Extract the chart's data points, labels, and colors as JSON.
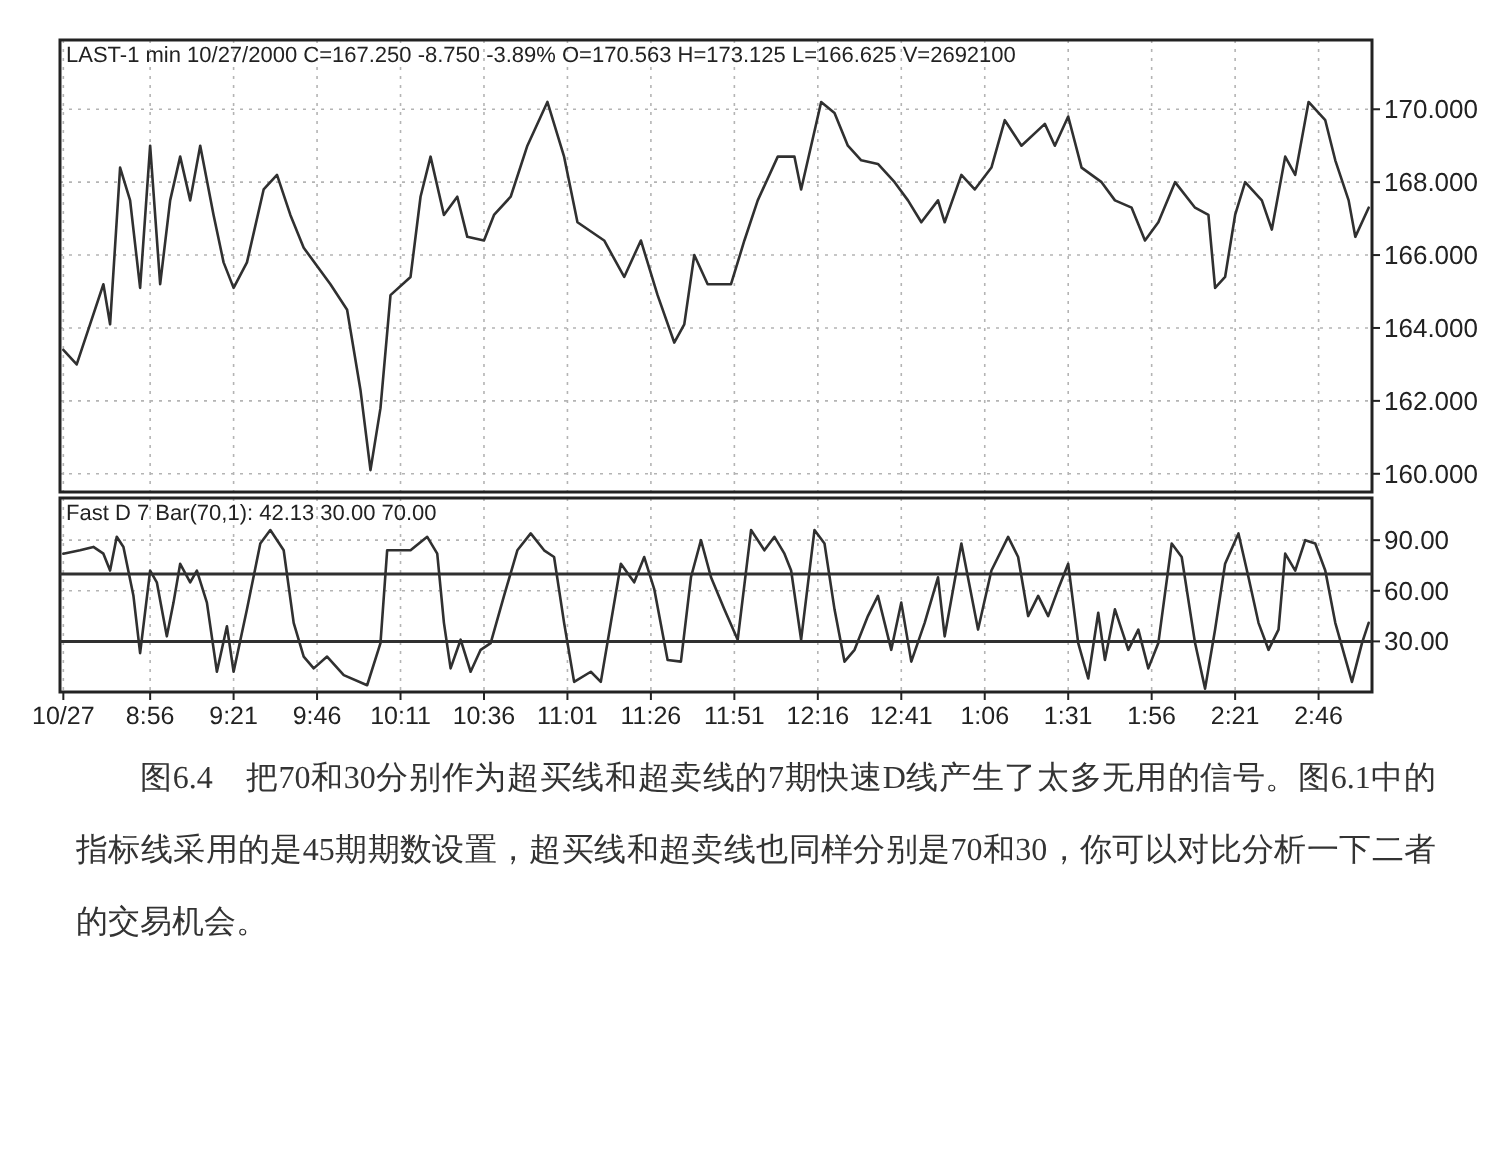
{
  "chart_data": [
    {
      "type": "line",
      "title": "LAST-1 min  10/27/2000  C=167.250  -8.750  -3.89%  O=170.563  H=173.125  L=166.625  V=2692100",
      "color": "#303030",
      "grid": true,
      "tick_labels": "y",
      "x": [
        "2000-10-27T08:30",
        "2000-10-27T08:34",
        "2000-10-27T08:38",
        "2000-10-27T08:42",
        "2000-10-27T08:44",
        "2000-10-27T08:47",
        "2000-10-27T08:50",
        "2000-10-27T08:53",
        "2000-10-27T08:56",
        "2000-10-27T08:59",
        "2000-10-27T09:02",
        "2000-10-27T09:05",
        "2000-10-27T09:08",
        "2000-10-27T09:11",
        "2000-10-27T09:15",
        "2000-10-27T09:18",
        "2000-10-27T09:21",
        "2000-10-27T09:25",
        "2000-10-27T09:30",
        "2000-10-27T09:34",
        "2000-10-27T09:38",
        "2000-10-27T09:42",
        "2000-10-27T09:50",
        "2000-10-27T09:55",
        "2000-10-27T09:59",
        "2000-10-27T10:02",
        "2000-10-27T10:05",
        "2000-10-27T10:08",
        "2000-10-27T10:14",
        "2000-10-27T10:17",
        "2000-10-27T10:20",
        "2000-10-27T10:24",
        "2000-10-27T10:28",
        "2000-10-27T10:31",
        "2000-10-27T10:36",
        "2000-10-27T10:39",
        "2000-10-27T10:44",
        "2000-10-27T10:49",
        "2000-10-27T10:55",
        "2000-10-27T11:00",
        "2000-10-27T11:04",
        "2000-10-27T11:12",
        "2000-10-27T11:18",
        "2000-10-27T11:23",
        "2000-10-27T11:28",
        "2000-10-27T11:33",
        "2000-10-27T11:36",
        "2000-10-27T11:39",
        "2000-10-27T11:43",
        "2000-10-27T11:50",
        "2000-10-27T11:54",
        "2000-10-27T11:58",
        "2000-10-27T12:04",
        "2000-10-27T12:09",
        "2000-10-27T12:11",
        "2000-10-27T12:17",
        "2000-10-27T12:21",
        "2000-10-27T12:25",
        "2000-10-27T12:29",
        "2000-10-27T12:34",
        "2000-10-27T12:39",
        "2000-10-27T12:43",
        "2000-10-27T12:47",
        "2000-10-27T12:52",
        "2000-10-27T12:54",
        "2000-10-27T12:59",
        "2000-10-27T13:03",
        "2000-10-27T13:08",
        "2000-10-27T13:12",
        "2000-10-27T13:17",
        "2000-10-27T13:24",
        "2000-10-27T13:27",
        "2000-10-27T13:31",
        "2000-10-27T13:35",
        "2000-10-27T13:41",
        "2000-10-27T13:45",
        "2000-10-27T13:50",
        "2000-10-27T13:54",
        "2000-10-27T13:58",
        "2000-10-27T14:03",
        "2000-10-27T14:09",
        "2000-10-27T14:13",
        "2000-10-27T14:15",
        "2000-10-27T14:18",
        "2000-10-27T14:21",
        "2000-10-27T14:24",
        "2000-10-27T14:29",
        "2000-10-27T14:32",
        "2000-10-27T14:36",
        "2000-10-27T14:39",
        "2000-10-27T14:43",
        "2000-10-27T14:48",
        "2000-10-27T14:51",
        "2000-10-27T14:55",
        "2000-10-27T14:57",
        "2000-10-27T15:01"
      ],
      "values": [
        163.4,
        163.0,
        164.1,
        165.2,
        164.1,
        168.4,
        167.5,
        165.1,
        169.0,
        165.2,
        167.5,
        168.7,
        167.5,
        169.0,
        167.1,
        165.8,
        165.1,
        165.8,
        167.8,
        168.2,
        167.1,
        166.2,
        165.2,
        164.5,
        162.3,
        160.1,
        161.8,
        164.9,
        165.4,
        167.6,
        168.7,
        167.1,
        167.6,
        166.5,
        166.4,
        167.1,
        167.6,
        169.0,
        170.2,
        168.7,
        166.9,
        166.4,
        165.4,
        166.4,
        164.9,
        163.6,
        164.1,
        166.0,
        165.2,
        165.2,
        166.4,
        167.5,
        168.7,
        168.7,
        167.8,
        170.2,
        169.9,
        169.0,
        168.6,
        168.5,
        168.0,
        167.5,
        166.9,
        167.5,
        166.9,
        168.2,
        167.8,
        168.4,
        169.7,
        169.0,
        169.6,
        169.0,
        169.8,
        168.4,
        168.0,
        167.5,
        167.3,
        166.4,
        166.9,
        168.0,
        167.3,
        167.1,
        165.1,
        165.4,
        167.1,
        168.0,
        167.5,
        166.7,
        168.7,
        168.2,
        170.2,
        169.7,
        168.6,
        167.5,
        166.5,
        167.3
      ],
      "xlim": [
        "2000-10-27T08:29",
        "2000-10-27T15:02"
      ],
      "ylim": [
        159.5,
        171.9
      ],
      "xticks": [
        {
          "value": "2000-10-27T08:30",
          "label": null
        },
        {
          "value": "2000-10-27T08:56",
          "label": null
        },
        {
          "value": "2000-10-27T09:21",
          "label": null
        },
        {
          "value": "2000-10-27T09:46",
          "label": null
        },
        {
          "value": "2000-10-27T10:11",
          "label": null
        },
        {
          "value": "2000-10-27T10:36",
          "label": null
        },
        {
          "value": "2000-10-27T11:01",
          "label": null
        },
        {
          "value": "2000-10-27T11:26",
          "label": null
        },
        {
          "value": "2000-10-27T11:51",
          "label": null
        },
        {
          "value": "2000-10-27T12:16",
          "label": null
        },
        {
          "value": "2000-10-27T12:41",
          "label": null
        },
        {
          "value": "2000-10-27T13:06",
          "label": null
        },
        {
          "value": "2000-10-27T13:31",
          "label": null
        },
        {
          "value": "2000-10-27T13:56",
          "label": null
        },
        {
          "value": "2000-10-27T14:21",
          "label": null
        },
        {
          "value": "2000-10-27T14:46",
          "label": null
        }
      ],
      "yticks": [
        {
          "value": 160,
          "label": "160.000"
        },
        {
          "value": 162,
          "label": "162.000"
        },
        {
          "value": 164,
          "label": "164.000"
        },
        {
          "value": 166,
          "label": "166.000"
        },
        {
          "value": 168,
          "label": "168.000"
        },
        {
          "value": 170,
          "label": "170.000"
        }
      ]
    },
    {
      "type": "line",
      "title": "Fast D 7 Bar(70,1): 42.13  30.00  70.00",
      "color": "#303030",
      "grid": true,
      "x": [
        "2000-10-27T08:30",
        "2000-10-27T08:35",
        "2000-10-27T08:39",
        "2000-10-27T08:42",
        "2000-10-27T08:44",
        "2000-10-27T08:46",
        "2000-10-27T08:48",
        "2000-10-27T08:51",
        "2000-10-27T08:53",
        "2000-10-27T08:56",
        "2000-10-27T08:58",
        "2000-10-27T09:01",
        "2000-10-27T09:03",
        "2000-10-27T09:05",
        "2000-10-27T09:08",
        "2000-10-27T09:10",
        "2000-10-27T09:13",
        "2000-10-27T09:16",
        "2000-10-27T09:19",
        "2000-10-27T09:21",
        "2000-10-27T09:25",
        "2000-10-27T09:29",
        "2000-10-27T09:32",
        "2000-10-27T09:36",
        "2000-10-27T09:39",
        "2000-10-27T09:42",
        "2000-10-27T09:45",
        "2000-10-27T09:49",
        "2000-10-27T09:54",
        "2000-10-27T10:01",
        "2000-10-27T10:05",
        "2000-10-27T10:07",
        "2000-10-27T10:14",
        "2000-10-27T10:19",
        "2000-10-27T10:22",
        "2000-10-27T10:24",
        "2000-10-27T10:26",
        "2000-10-27T10:29",
        "2000-10-27T10:32",
        "2000-10-27T10:35",
        "2000-10-27T10:38",
        "2000-10-27T10:42",
        "2000-10-27T10:46",
        "2000-10-27T10:50",
        "2000-10-27T10:54",
        "2000-10-27T10:57",
        "2000-10-27T11:00",
        "2000-10-27T11:03",
        "2000-10-27T11:08",
        "2000-10-27T11:11",
        "2000-10-27T11:14",
        "2000-10-27T11:17",
        "2000-10-27T11:21",
        "2000-10-27T11:24",
        "2000-10-27T11:27",
        "2000-10-27T11:31",
        "2000-10-27T11:35",
        "2000-10-27T11:38",
        "2000-10-27T11:41",
        "2000-10-27T11:44",
        "2000-10-27T11:48",
        "2000-10-27T11:52",
        "2000-10-27T11:56",
        "2000-10-27T12:00",
        "2000-10-27T12:03",
        "2000-10-27T12:06",
        "2000-10-27T12:08",
        "2000-10-27T12:11",
        "2000-10-27T12:15",
        "2000-10-27T12:18",
        "2000-10-27T12:21",
        "2000-10-27T12:24",
        "2000-10-27T12:27",
        "2000-10-27T12:31",
        "2000-10-27T12:34",
        "2000-10-27T12:36",
        "2000-10-27T12:38",
        "2000-10-27T12:41",
        "2000-10-27T12:44",
        "2000-10-27T12:48",
        "2000-10-27T12:52",
        "2000-10-27T12:54",
        "2000-10-27T12:59",
        "2000-10-27T13:04",
        "2000-10-27T13:08",
        "2000-10-27T13:13",
        "2000-10-27T13:16",
        "2000-10-27T13:19",
        "2000-10-27T13:22",
        "2000-10-27T13:25",
        "2000-10-27T13:28",
        "2000-10-27T13:31",
        "2000-10-27T13:34",
        "2000-10-27T13:37",
        "2000-10-27T13:40",
        "2000-10-27T13:42",
        "2000-10-27T13:45",
        "2000-10-27T13:49",
        "2000-10-27T13:52",
        "2000-10-27T13:55",
        "2000-10-27T13:58",
        "2000-10-27T14:02",
        "2000-10-27T14:05",
        "2000-10-27T14:09",
        "2000-10-27T14:12",
        "2000-10-27T14:15",
        "2000-10-27T14:18",
        "2000-10-27T14:22",
        "2000-10-27T14:25",
        "2000-10-27T14:28",
        "2000-10-27T14:31",
        "2000-10-27T14:34",
        "2000-10-27T14:36",
        "2000-10-27T14:39",
        "2000-10-27T14:42",
        "2000-10-27T14:45",
        "2000-10-27T14:48",
        "2000-10-27T14:51",
        "2000-10-27T14:56",
        "2000-10-27T14:59",
        "2000-10-27T15:01"
      ],
      "values": [
        82,
        84,
        86,
        82,
        72,
        92,
        86,
        57,
        23,
        72,
        65,
        33,
        53,
        76,
        65,
        72,
        53,
        12,
        39,
        12,
        49,
        88,
        96,
        84,
        41,
        21,
        14,
        21,
        10,
        4,
        29,
        84,
        84,
        92,
        82,
        41,
        14,
        31,
        12,
        25,
        29,
        57,
        84,
        94,
        84,
        80,
        41,
        6,
        12,
        6,
        41,
        76,
        65,
        80,
        61,
        19,
        18,
        68,
        90,
        68,
        49,
        31,
        96,
        84,
        92,
        82,
        72,
        31,
        96,
        88,
        49,
        18,
        25,
        45,
        57,
        41,
        25,
        53,
        18,
        41,
        68,
        33,
        88,
        37,
        72,
        92,
        80,
        45,
        57,
        45,
        61,
        76,
        29,
        8,
        47,
        19,
        49,
        25,
        37,
        14,
        29,
        88,
        80,
        29,
        2,
        37,
        76,
        94,
        68,
        41,
        25,
        37,
        82,
        72,
        90,
        88,
        72,
        41,
        6,
        29,
        41
      ],
      "xlim": [
        "2000-10-27T08:29",
        "2000-10-27T15:02"
      ],
      "ylim": [
        0,
        115
      ],
      "xticks": [
        {
          "value": "2000-10-27T08:30",
          "label": "10/27"
        },
        {
          "value": "2000-10-27T08:56",
          "label": "8:56"
        },
        {
          "value": "2000-10-27T09:21",
          "label": "9:21"
        },
        {
          "value": "2000-10-27T09:46",
          "label": "9:46"
        },
        {
          "value": "2000-10-27T10:11",
          "label": "10:11"
        },
        {
          "value": "2000-10-27T10:36",
          "label": "10:36"
        },
        {
          "value": "2000-10-27T11:01",
          "label": "11:01"
        },
        {
          "value": "2000-10-27T11:26",
          "label": "11:26"
        },
        {
          "value": "2000-10-27T11:51",
          "label": "11:51"
        },
        {
          "value": "2000-10-27T12:16",
          "label": "12:16"
        },
        {
          "value": "2000-10-27T12:41",
          "label": "12:41"
        },
        {
          "value": "2000-10-27T13:06",
          "label": "1:06"
        },
        {
          "value": "2000-10-27T13:31",
          "label": "1:31"
        },
        {
          "value": "2000-10-27T13:56",
          "label": "1:56"
        },
        {
          "value": "2000-10-27T14:21",
          "label": "2:21"
        },
        {
          "value": "2000-10-27T14:46",
          "label": "2:46"
        }
      ],
      "yticks": [
        {
          "value": 30,
          "label": "30.00"
        },
        {
          "value": 60,
          "label": "60.00"
        },
        {
          "value": 90,
          "label": "90.00"
        }
      ],
      "ref_lines": [
        {
          "axis": "y",
          "value": 70,
          "color": "#303030"
        },
        {
          "axis": "y",
          "value": 30,
          "color": "#303030"
        }
      ],
      "annotations": [
        "图6.4　把70和30分别作为超买线和超卖线的7期快速D线产生了太多无用的信号。图6.1中的指标线采用的是45期期数设置，超买线和超卖线也同样分别是70和30，你可以对比分析一下二者的交易机会。"
      ]
    }
  ]
}
